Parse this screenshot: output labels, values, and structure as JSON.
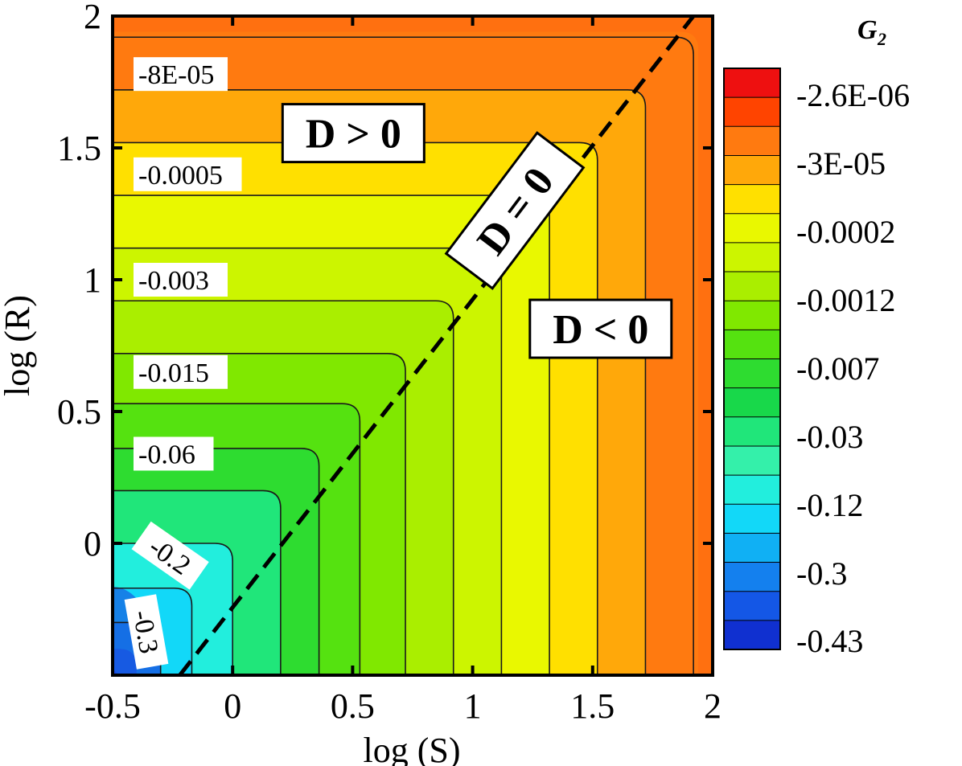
{
  "chart_data": {
    "type": "contour",
    "xlabel": "log (S)",
    "ylabel": "log (R)",
    "xlim": [
      -0.5,
      2
    ],
    "ylim": [
      -0.5,
      2
    ],
    "x_ticks": [
      "-0.5",
      "0",
      "0.5",
      "1",
      "1.5",
      "2"
    ],
    "y_ticks": [
      "0",
      "0.5",
      "1",
      "1.5",
      "2"
    ],
    "colorbar": {
      "title": "G",
      "title_subscript": "2",
      "ticks": [
        "-2.6E-06",
        "-3E-05",
        "-0.0002",
        "-0.0012",
        "-0.007",
        "-0.03",
        "-0.12",
        "-0.3",
        "-0.43"
      ],
      "colors": [
        "#ee1010",
        "#ff4400",
        "#ff7a10",
        "#ffa80a",
        "#ffe000",
        "#e9f800",
        "#ccf500",
        "#aaee00",
        "#80e800",
        "#55e210",
        "#2edc30",
        "#18d84a",
        "#20e67a",
        "#34f0aa",
        "#22eedd",
        "#12d8f8",
        "#10b0f4",
        "#1480ee",
        "#1457e6",
        "#1030d0"
      ]
    },
    "contour_labels": [
      "-8E-05",
      "-0.0005",
      "-0.003",
      "-0.015",
      "-0.06",
      "-0.2",
      "-0.3"
    ],
    "contour_levels": [
      -8e-05,
      -0.0005,
      -0.003,
      -0.015,
      -0.06,
      -0.2,
      -0.3
    ],
    "boundary_line": {
      "label": "D = 0",
      "from": [
        -0.22,
        -0.5
      ],
      "to": [
        1.92,
        2.0
      ]
    },
    "regions": [
      {
        "label": "D > 0",
        "x": 0.55,
        "y": 1.55
      },
      {
        "label": "D < 0",
        "x": 1.5,
        "y": 0.82
      }
    ]
  }
}
